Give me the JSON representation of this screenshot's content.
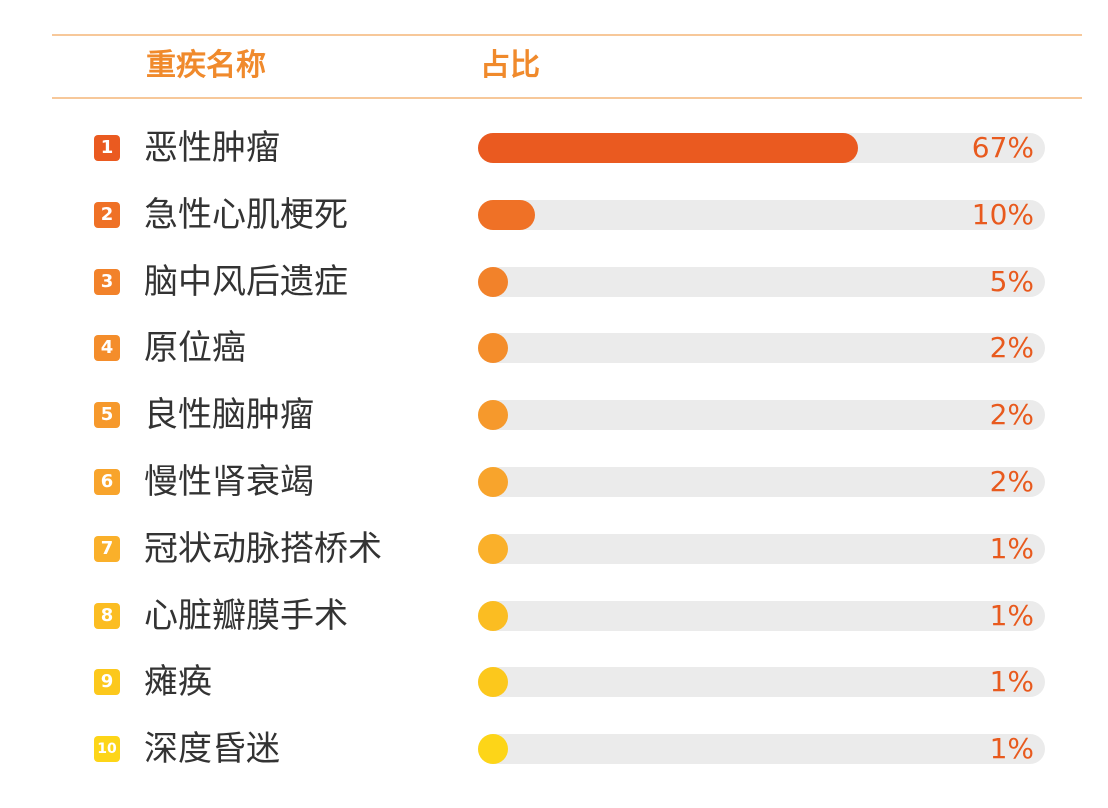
{
  "chart_data": {
    "type": "bar",
    "columns": {
      "name": "重疾名称",
      "share": "占比"
    },
    "categories": [
      "恶性肿瘤",
      "急性心肌梗死",
      "脑中风后遗症",
      "原位癌",
      "良性脑肿瘤",
      "慢性肾衰竭",
      "冠状动脉搭桥术",
      "心脏瓣膜手术",
      "瘫痪",
      "深度昏迷"
    ],
    "ranks": [
      "1",
      "2",
      "3",
      "4",
      "5",
      "6",
      "7",
      "8",
      "9",
      "10"
    ],
    "values": [
      67,
      10,
      5,
      2,
      2,
      2,
      1,
      1,
      1,
      1
    ],
    "value_labels": [
      "67%",
      "10%",
      "5%",
      "2%",
      "2%",
      "2%",
      "1%",
      "1%",
      "1%",
      "1%"
    ],
    "colors": [
      "#ea5a20",
      "#ef7126",
      "#f2822a",
      "#f48d2b",
      "#f6992c",
      "#f8a42c",
      "#fab02a",
      "#fbbd22",
      "#fcc81c",
      "#fdd518"
    ],
    "xlim": [
      0,
      100
    ],
    "orientation": "horizontal",
    "grid": false,
    "legend": "none"
  }
}
